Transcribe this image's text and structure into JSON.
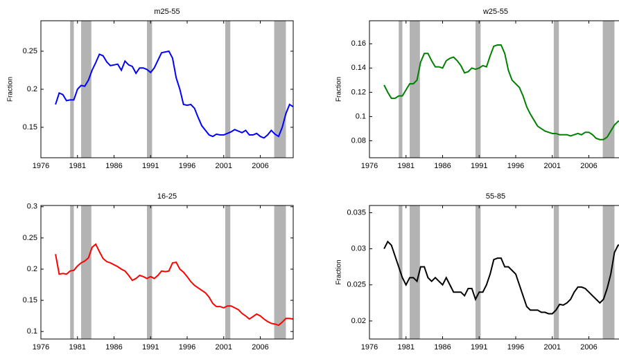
{
  "chart_data": [
    {
      "type": "line",
      "title": "m25-55",
      "ylabel": "Fraction",
      "color": "#0000ff",
      "x": [
        1978,
        1978.5,
        1979,
        1979.5,
        1980,
        1980.5,
        1981,
        1981.5,
        1982,
        1982.5,
        1983,
        1983.5,
        1984,
        1984.5,
        1985,
        1985.5,
        1986,
        1986.5,
        1987,
        1987.5,
        1988,
        1988.5,
        1989,
        1989.5,
        1990,
        1990.5,
        1991,
        1991.5,
        1992,
        1992.5,
        1993,
        1993.5,
        1994,
        1994.5,
        1995,
        1995.5,
        1996,
        1996.5,
        1997,
        1997.5,
        1998,
        1998.5,
        1999,
        1999.5,
        2000,
        2000.5,
        2001,
        2001.5,
        2002,
        2002.5,
        2003,
        2003.5,
        2004,
        2004.5,
        2005,
        2005.5,
        2006,
        2006.5,
        2007,
        2007.5,
        2008,
        2008.5,
        2009,
        2009.5,
        2010,
        2010.5
      ],
      "values": [
        0.18,
        0.195,
        0.193,
        0.185,
        0.186,
        0.186,
        0.2,
        0.205,
        0.204,
        0.212,
        0.225,
        0.235,
        0.246,
        0.244,
        0.236,
        0.231,
        0.232,
        0.233,
        0.225,
        0.237,
        0.232,
        0.23,
        0.221,
        0.228,
        0.228,
        0.226,
        0.222,
        0.228,
        0.238,
        0.248,
        0.249,
        0.25,
        0.241,
        0.215,
        0.2,
        0.18,
        0.179,
        0.18,
        0.175,
        0.163,
        0.152,
        0.146,
        0.14,
        0.138,
        0.141,
        0.14,
        0.14,
        0.142,
        0.144,
        0.147,
        0.145,
        0.143,
        0.146,
        0.14,
        0.14,
        0.142,
        0.138,
        0.136,
        0.14,
        0.146,
        0.141,
        0.138,
        0.15,
        0.168,
        0.18,
        0.177
      ],
      "shaded_regions": [
        [
          1980,
          1980.5
        ],
        [
          1981.5,
          1982.9
        ],
        [
          1990.5,
          1991.2
        ],
        [
          2001.2,
          2001.9
        ],
        [
          2007.9,
          2009.5
        ]
      ],
      "xlim": [
        1976,
        2010.5
      ],
      "xticks": [
        1976,
        1981,
        1986,
        1991,
        1996,
        2001,
        2006
      ],
      "ylim": [
        0.11,
        0.29
      ],
      "yticks": [
        0.15,
        0.2,
        0.25
      ]
    },
    {
      "type": "line",
      "title": "w25-55",
      "ylabel": "Fraction",
      "color": "#008000",
      "x": [
        1978,
        1978.5,
        1979,
        1979.5,
        1980,
        1980.5,
        1981,
        1981.5,
        1982,
        1982.5,
        1983,
        1983.5,
        1984,
        1984.5,
        1985,
        1985.5,
        1986,
        1986.5,
        1987,
        1987.5,
        1988,
        1988.5,
        1989,
        1989.5,
        1990,
        1990.5,
        1991,
        1991.5,
        1992,
        1992.5,
        1993,
        1993.5,
        1994,
        1994.5,
        1995,
        1995.5,
        1996,
        1996.5,
        1997,
        1997.5,
        1998,
        1998.5,
        1999,
        1999.5,
        2000,
        2000.5,
        2001,
        2001.5,
        2002,
        2002.5,
        2003,
        2003.5,
        2004,
        2004.5,
        2005,
        2005.5,
        2006,
        2006.5,
        2007,
        2007.5,
        2008,
        2008.5,
        2009,
        2009.5,
        2010,
        2010.5
      ],
      "values": [
        0.126,
        0.12,
        0.115,
        0.115,
        0.117,
        0.117,
        0.122,
        0.127,
        0.127,
        0.13,
        0.145,
        0.152,
        0.152,
        0.146,
        0.141,
        0.141,
        0.14,
        0.146,
        0.148,
        0.149,
        0.146,
        0.142,
        0.136,
        0.137,
        0.14,
        0.139,
        0.14,
        0.142,
        0.141,
        0.15,
        0.158,
        0.159,
        0.159,
        0.152,
        0.138,
        0.13,
        0.127,
        0.124,
        0.117,
        0.108,
        0.102,
        0.097,
        0.092,
        0.09,
        0.088,
        0.087,
        0.086,
        0.086,
        0.085,
        0.085,
        0.085,
        0.084,
        0.085,
        0.086,
        0.085,
        0.087,
        0.087,
        0.085,
        0.082,
        0.081,
        0.081,
        0.083,
        0.088,
        0.093,
        0.096,
        0.097
      ],
      "shaded_regions": [
        [
          1980,
          1980.5
        ],
        [
          1981.5,
          1982.9
        ],
        [
          1990.5,
          1991.2
        ],
        [
          2001.2,
          2001.9
        ],
        [
          2007.9,
          2009.5
        ]
      ],
      "xlim": [
        1976,
        2010.5
      ],
      "xticks": [
        1976,
        1981,
        1986,
        1991,
        1996,
        2001,
        2006
      ],
      "ylim": [
        0.066,
        0.179
      ],
      "yticks": [
        0.08,
        0.1,
        0.12,
        0.14,
        0.16
      ]
    },
    {
      "type": "line",
      "title": "16-25",
      "color": "#ff0000",
      "x": [
        1978,
        1978.5,
        1979,
        1979.5,
        1980,
        1980.5,
        1981,
        1981.5,
        1982,
        1982.5,
        1983,
        1983.5,
        1984,
        1984.5,
        1985,
        1985.5,
        1986,
        1986.5,
        1987,
        1987.5,
        1988,
        1988.5,
        1989,
        1989.5,
        1990,
        1990.5,
        1991,
        1991.5,
        1992,
        1992.5,
        1993,
        1993.5,
        1994,
        1994.5,
        1995,
        1995.5,
        1996,
        1996.5,
        1997,
        1997.5,
        1998,
        1998.5,
        1999,
        1999.5,
        2000,
        2000.5,
        2001,
        2001.5,
        2002,
        2002.5,
        2003,
        2003.5,
        2004,
        2004.5,
        2005,
        2005.5,
        2006,
        2006.5,
        2007,
        2007.5,
        2008,
        2008.5,
        2009,
        2009.5,
        2010,
        2010.5
      ],
      "values": [
        0.224,
        0.192,
        0.193,
        0.192,
        0.197,
        0.198,
        0.205,
        0.21,
        0.213,
        0.218,
        0.235,
        0.24,
        0.228,
        0.217,
        0.212,
        0.21,
        0.207,
        0.204,
        0.2,
        0.197,
        0.19,
        0.182,
        0.185,
        0.19,
        0.188,
        0.185,
        0.188,
        0.185,
        0.19,
        0.197,
        0.196,
        0.197,
        0.21,
        0.211,
        0.2,
        0.195,
        0.188,
        0.18,
        0.174,
        0.17,
        0.166,
        0.162,
        0.155,
        0.145,
        0.14,
        0.14,
        0.138,
        0.141,
        0.141,
        0.138,
        0.135,
        0.129,
        0.125,
        0.12,
        0.124,
        0.128,
        0.125,
        0.12,
        0.116,
        0.113,
        0.112,
        0.11,
        0.115,
        0.121,
        0.121,
        0.12
      ],
      "shaded_regions": [
        [
          1980,
          1980.5
        ],
        [
          1981.5,
          1982.9
        ],
        [
          1990.5,
          1991.2
        ],
        [
          2001.2,
          2001.9
        ],
        [
          2007.9,
          2009.5
        ]
      ],
      "xlim": [
        1976,
        2010.5
      ],
      "xticks": [
        1976,
        1981,
        1986,
        1991,
        1996,
        2001,
        2006
      ],
      "ylim": [
        0.088,
        0.302
      ],
      "yticks": [
        0.1,
        0.15,
        0.2,
        0.25,
        0.3
      ]
    },
    {
      "type": "line",
      "title": "55-85",
      "ylabel": "Fraction",
      "color": "#000000",
      "x": [
        1978,
        1978.5,
        1979,
        1979.5,
        1980,
        1980.5,
        1981,
        1981.5,
        1982,
        1982.5,
        1983,
        1983.5,
        1984,
        1984.5,
        1985,
        1985.5,
        1986,
        1986.5,
        1987,
        1987.5,
        1988,
        1988.5,
        1989,
        1989.5,
        1990,
        1990.5,
        1991,
        1991.5,
        1992,
        1992.5,
        1993,
        1993.5,
        1994,
        1994.5,
        1995,
        1995.5,
        1996,
        1996.5,
        1997,
        1997.5,
        1998,
        1998.5,
        1999,
        1999.5,
        2000,
        2000.5,
        2001,
        2001.5,
        2002,
        2002.5,
        2003,
        2003.5,
        2004,
        2004.5,
        2005,
        2005.5,
        2006,
        2006.5,
        2007,
        2007.5,
        2008,
        2008.5,
        2009,
        2009.5,
        2010,
        2010.5
      ],
      "values": [
        0.03,
        0.031,
        0.0305,
        0.029,
        0.0275,
        0.026,
        0.025,
        0.026,
        0.026,
        0.0255,
        0.0275,
        0.0275,
        0.026,
        0.0255,
        0.026,
        0.0255,
        0.025,
        0.026,
        0.025,
        0.024,
        0.024,
        0.024,
        0.0235,
        0.0245,
        0.0245,
        0.023,
        0.024,
        0.024,
        0.025,
        0.0265,
        0.0285,
        0.0287,
        0.0287,
        0.0275,
        0.0275,
        0.027,
        0.0265,
        0.025,
        0.0235,
        0.022,
        0.0215,
        0.0215,
        0.0215,
        0.0212,
        0.0212,
        0.021,
        0.021,
        0.0215,
        0.0223,
        0.0222,
        0.0225,
        0.023,
        0.024,
        0.0247,
        0.0247,
        0.0245,
        0.024,
        0.0235,
        0.023,
        0.0225,
        0.023,
        0.0245,
        0.0265,
        0.0295,
        0.0305,
        0.0305
      ],
      "shaded_regions": [
        [
          1980,
          1980.5
        ],
        [
          1981.5,
          1982.9
        ],
        [
          1990.5,
          1991.2
        ],
        [
          2001.2,
          2001.9
        ],
        [
          2007.9,
          2009.5
        ]
      ],
      "xlim": [
        1976,
        2010.5
      ],
      "xticks": [
        1976,
        1981,
        1986,
        1991,
        1996,
        2001,
        2006
      ],
      "ylim": [
        0.0175,
        0.036
      ],
      "yticks": [
        0.02,
        0.025,
        0.03,
        0.035
      ]
    }
  ]
}
